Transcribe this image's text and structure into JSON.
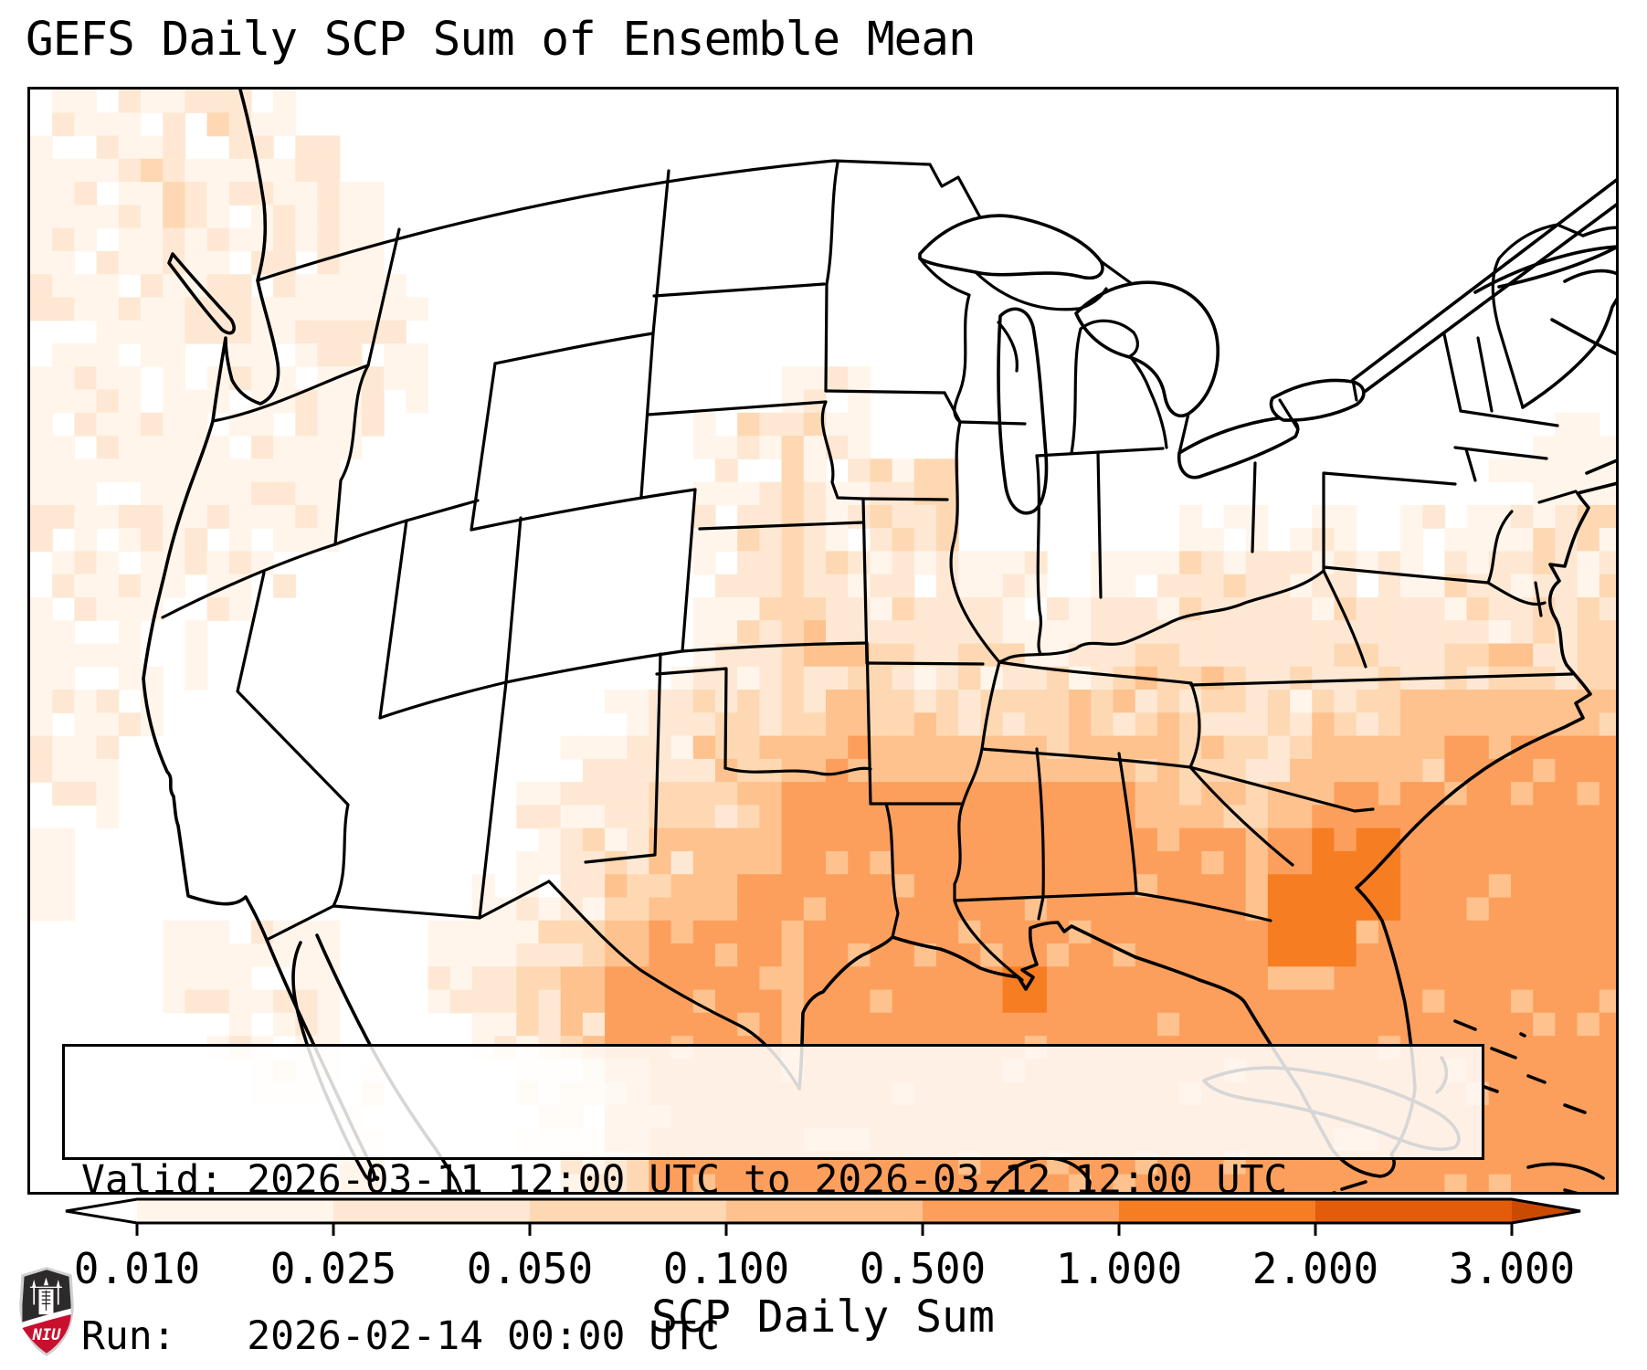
{
  "title": "GEFS Daily SCP Sum of Ensemble Mean",
  "annotation_box": {
    "valid_line": "Valid: 2026-03-11 12:00 UTC to 2026-03-12 12:00 UTC",
    "run_line": "Run:   2026-02-14 00:00 UTC"
  },
  "logo": {
    "org": "NIU",
    "label": "NIU",
    "shield_dark": "#2d2a2b",
    "shield_red": "#c8102e",
    "shield_silver": "#cfd0d2"
  },
  "chart_data": {
    "type": "heatmap",
    "title": "GEFS Daily SCP Sum of Ensemble Mean",
    "projection": "lambert-conformal-conus",
    "colorbar_label": "SCP Daily Sum",
    "levels": [
      0.01,
      0.025,
      0.05,
      0.1,
      0.5,
      1.0,
      2.0,
      3.0
    ],
    "tick_labels": [
      "0.010",
      "0.025",
      "0.050",
      "0.100",
      "0.500",
      "1.000",
      "2.000",
      "3.000"
    ],
    "extend": "both",
    "colormap": "Oranges",
    "bin_colors": [
      "",
      "#fff5eb",
      "#fee8d3",
      "#fdd8b3",
      "#fdc28e",
      "#fd9f5c",
      "#f67d22",
      "#e45c09"
    ],
    "under_color": "#ffffff",
    "over_color": "#cb4a02",
    "grid": {
      "cols": 36,
      "rows": 24,
      "note": "bin index per cell, 0=<0.01, 1=0.01-0.025, 2=0.025-0.05, 3=0.05-0.1, 4=0.1-0.5, 5=0.5-1, 6=1-2; highest values over Gulf of Mexico and SE Atlantic",
      "bin_rows": [
        "111121000000000000000000000000000000",
        "112111100000000000000000000000000000",
        "111211110000000000000000000000000000",
        "111112110000000000000000000000000000",
        "111121111000000000000000000000000000",
        "111111211000000000000000000000000000",
        "111111121000000001100000000000000000",
        "111111110000000122100000000000000011",
        "111111100000000112122000000000000111",
        "111111100000000122122000001111011122",
        "111111000000000122221110112222112222",
        "111110000000000123222211222222222233",
        "111100000000001223332222233222223333",
        "111000000000012233433333333223344444",
        "110000000000122334544444443334445555",
        "110000000001223345555555544445555555",
        "100000000001223445555555555556655555",
        "100000000011234455555555555566655555",
        "000111100112345555555555555566555555",
        "000111100123455555555565555555555555",
        "000011100012355555555555555555555555",
        "000001110001245555555555555555555555",
        "000000110001135555555555555555555555",
        "000000010000125555555555555555555555"
      ]
    }
  }
}
